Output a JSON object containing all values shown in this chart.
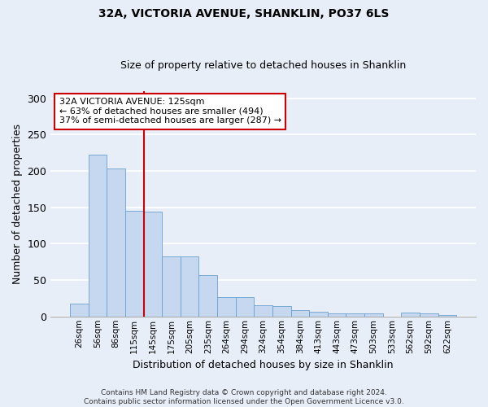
{
  "title": "32A, VICTORIA AVENUE, SHANKLIN, PO37 6LS",
  "subtitle": "Size of property relative to detached houses in Shanklin",
  "xlabel": "Distribution of detached houses by size in Shanklin",
  "ylabel": "Number of detached properties",
  "bins": [
    "26sqm",
    "56sqm",
    "86sqm",
    "115sqm",
    "145sqm",
    "175sqm",
    "205sqm",
    "235sqm",
    "264sqm",
    "294sqm",
    "324sqm",
    "354sqm",
    "384sqm",
    "413sqm",
    "443sqm",
    "473sqm",
    "503sqm",
    "533sqm",
    "562sqm",
    "592sqm",
    "622sqm"
  ],
  "values": [
    18,
    222,
    203,
    145,
    144,
    83,
    83,
    57,
    27,
    27,
    15,
    14,
    9,
    7,
    4,
    4,
    4,
    0,
    5,
    4,
    2
  ],
  "bar_color": "#c5d8f0",
  "bar_edge_color": "#6aa0d0",
  "vline_color": "#cc0000",
  "annotation_text": "32A VICTORIA AVENUE: 125sqm\n← 63% of detached houses are smaller (494)\n37% of semi-detached houses are larger (287) →",
  "annotation_box_color": "#ffffff",
  "annotation_box_edge": "#cc0000",
  "ylim": [
    0,
    310
  ],
  "yticks": [
    0,
    50,
    100,
    150,
    200,
    250,
    300
  ],
  "footnote": "Contains HM Land Registry data © Crown copyright and database right 2024.\nContains public sector information licensed under the Open Government Licence v3.0.",
  "bg_color": "#e8eef8",
  "plot_bg_color": "#e8eef8",
  "grid_color": "#ffffff",
  "title_fontsize": 10,
  "subtitle_fontsize": 9
}
